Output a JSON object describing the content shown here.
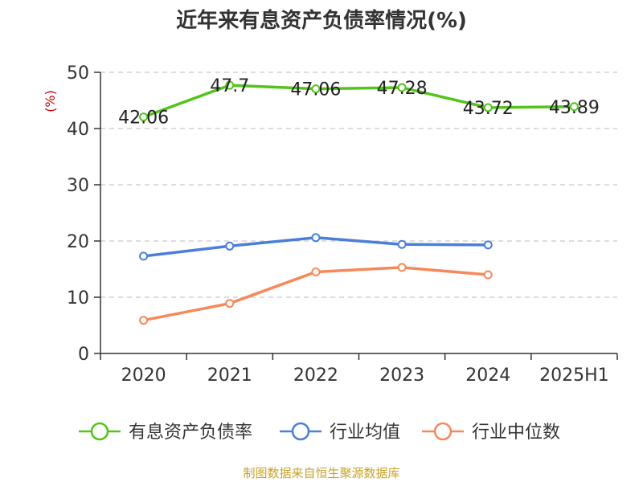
{
  "chart_data": {
    "type": "line",
    "title": "近年来有息资产负债率情况(%)",
    "ylabel": "(%)",
    "categories": [
      "2020",
      "2021",
      "2022",
      "2023",
      "2024",
      "2025H1"
    ],
    "ylim": [
      0,
      50
    ],
    "yticks": [
      0,
      10,
      20,
      30,
      40,
      50
    ],
    "grid": true,
    "legend_position": "bottom",
    "series": [
      {
        "name": "有息资产负债率",
        "color": "#52c41a",
        "values": [
          42.06,
          47.7,
          47.06,
          47.28,
          43.72,
          43.89
        ],
        "labels": true
      },
      {
        "name": "行业均值",
        "color": "#4a7fd9",
        "values": [
          17.3,
          19.1,
          20.6,
          19.4,
          19.3,
          null
        ],
        "labels": false
      },
      {
        "name": "行业中位数",
        "color": "#f5895a",
        "values": [
          5.9,
          8.9,
          14.5,
          15.3,
          14.0,
          null
        ],
        "labels": false
      }
    ]
  },
  "source": "制图数据来自恒生聚源数据库"
}
